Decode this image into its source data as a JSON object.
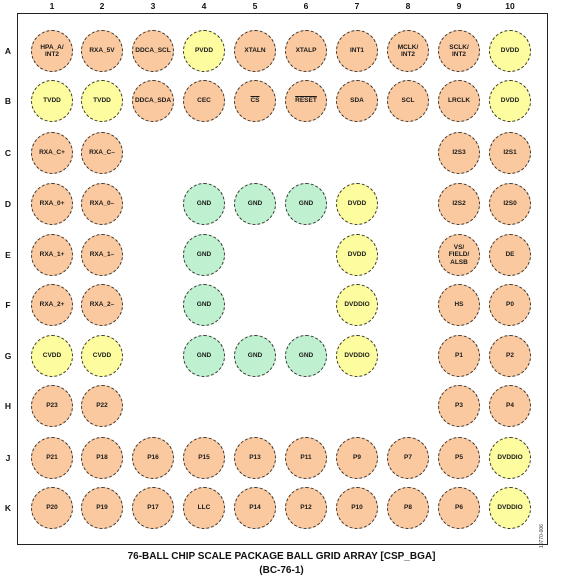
{
  "colors": {
    "orange": "#fbc99f",
    "yellow": "#fdfda0",
    "green": "#bff0cf"
  },
  "columns": [
    "1",
    "2",
    "3",
    "4",
    "5",
    "6",
    "7",
    "8",
    "9",
    "10"
  ],
  "rows": [
    "A",
    "B",
    "C",
    "D",
    "E",
    "F",
    "G",
    "H",
    "J",
    "K"
  ],
  "balls": [
    {
      "row": "A",
      "col": 1,
      "label": "HPA_A/\nINT2",
      "color": "orange"
    },
    {
      "row": "A",
      "col": 2,
      "label": "RXA_5V",
      "color": "orange"
    },
    {
      "row": "A",
      "col": 3,
      "label": "DDCA_SCL",
      "color": "orange"
    },
    {
      "row": "A",
      "col": 4,
      "label": "PVDD",
      "color": "yellow"
    },
    {
      "row": "A",
      "col": 5,
      "label": "XTALN",
      "color": "orange"
    },
    {
      "row": "A",
      "col": 6,
      "label": "XTALP",
      "color": "orange"
    },
    {
      "row": "A",
      "col": 7,
      "label": "INT1",
      "color": "orange"
    },
    {
      "row": "A",
      "col": 8,
      "label": "MCLK/\nINT2",
      "color": "orange"
    },
    {
      "row": "A",
      "col": 9,
      "label": "SCLK/\nINT2",
      "color": "orange"
    },
    {
      "row": "A",
      "col": 10,
      "label": "DVDD",
      "color": "yellow"
    },
    {
      "row": "B",
      "col": 1,
      "label": "TVDD",
      "color": "yellow"
    },
    {
      "row": "B",
      "col": 2,
      "label": "TVDD",
      "color": "yellow"
    },
    {
      "row": "B",
      "col": 3,
      "label": "DDCA_SDA",
      "color": "orange"
    },
    {
      "row": "B",
      "col": 4,
      "label": "CEC",
      "color": "orange"
    },
    {
      "row": "B",
      "col": 5,
      "label": "CS",
      "color": "orange"
    },
    {
      "row": "B",
      "col": 6,
      "label": "RESET",
      "color": "orange"
    },
    {
      "row": "B",
      "col": 7,
      "label": "SDA",
      "color": "orange"
    },
    {
      "row": "B",
      "col": 8,
      "label": "SCL",
      "color": "orange"
    },
    {
      "row": "B",
      "col": 9,
      "label": "LRCLK",
      "color": "orange"
    },
    {
      "row": "B",
      "col": 10,
      "label": "DVDD",
      "color": "yellow"
    },
    {
      "row": "C",
      "col": 1,
      "label": "RXA_C+",
      "color": "orange"
    },
    {
      "row": "C",
      "col": 2,
      "label": "RXA_C–",
      "color": "orange"
    },
    {
      "row": "C",
      "col": 9,
      "label": "I2S3",
      "color": "orange"
    },
    {
      "row": "C",
      "col": 10,
      "label": "I2S1",
      "color": "orange"
    },
    {
      "row": "D",
      "col": 1,
      "label": "RXA_0+",
      "color": "orange"
    },
    {
      "row": "D",
      "col": 2,
      "label": "RXA_0–",
      "color": "orange"
    },
    {
      "row": "D",
      "col": 4,
      "label": "GND",
      "color": "green"
    },
    {
      "row": "D",
      "col": 5,
      "label": "GND",
      "color": "green"
    },
    {
      "row": "D",
      "col": 6,
      "label": "GND",
      "color": "green"
    },
    {
      "row": "D",
      "col": 7,
      "label": "DVDD",
      "color": "yellow"
    },
    {
      "row": "D",
      "col": 9,
      "label": "I2S2",
      "color": "orange"
    },
    {
      "row": "D",
      "col": 10,
      "label": "I2S0",
      "color": "orange"
    },
    {
      "row": "E",
      "col": 1,
      "label": "RXA_1+",
      "color": "orange"
    },
    {
      "row": "E",
      "col": 2,
      "label": "RXA_1–",
      "color": "orange"
    },
    {
      "row": "E",
      "col": 4,
      "label": "GND",
      "color": "green"
    },
    {
      "row": "E",
      "col": 7,
      "label": "DVDD",
      "color": "yellow"
    },
    {
      "row": "E",
      "col": 9,
      "label": "VS/\nFIELD/\nALSB",
      "color": "orange"
    },
    {
      "row": "E",
      "col": 10,
      "label": "DE",
      "color": "orange"
    },
    {
      "row": "F",
      "col": 1,
      "label": "RXA_2+",
      "color": "orange"
    },
    {
      "row": "F",
      "col": 2,
      "label": "RXA_2–",
      "color": "orange"
    },
    {
      "row": "F",
      "col": 4,
      "label": "GND",
      "color": "green"
    },
    {
      "row": "F",
      "col": 7,
      "label": "DVDDIO",
      "color": "yellow"
    },
    {
      "row": "F",
      "col": 9,
      "label": "HS",
      "color": "orange"
    },
    {
      "row": "F",
      "col": 10,
      "label": "P0",
      "color": "orange"
    },
    {
      "row": "G",
      "col": 1,
      "label": "CVDD",
      "color": "yellow"
    },
    {
      "row": "G",
      "col": 2,
      "label": "CVDD",
      "color": "yellow"
    },
    {
      "row": "G",
      "col": 4,
      "label": "GND",
      "color": "green"
    },
    {
      "row": "G",
      "col": 5,
      "label": "GND",
      "color": "green"
    },
    {
      "row": "G",
      "col": 6,
      "label": "GND",
      "color": "green"
    },
    {
      "row": "G",
      "col": 7,
      "label": "DVDDIO",
      "color": "yellow"
    },
    {
      "row": "G",
      "col": 9,
      "label": "P1",
      "color": "orange"
    },
    {
      "row": "G",
      "col": 10,
      "label": "P2",
      "color": "orange"
    },
    {
      "row": "H",
      "col": 1,
      "label": "P23",
      "color": "orange"
    },
    {
      "row": "H",
      "col": 2,
      "label": "P22",
      "color": "orange"
    },
    {
      "row": "H",
      "col": 9,
      "label": "P3",
      "color": "orange"
    },
    {
      "row": "H",
      "col": 10,
      "label": "P4",
      "color": "orange"
    },
    {
      "row": "J",
      "col": 1,
      "label": "P21",
      "color": "orange"
    },
    {
      "row": "J",
      "col": 2,
      "label": "P18",
      "color": "orange"
    },
    {
      "row": "J",
      "col": 3,
      "label": "P16",
      "color": "orange"
    },
    {
      "row": "J",
      "col": 4,
      "label": "P15",
      "color": "orange"
    },
    {
      "row": "J",
      "col": 5,
      "label": "P13",
      "color": "orange"
    },
    {
      "row": "J",
      "col": 6,
      "label": "P11",
      "color": "orange"
    },
    {
      "row": "J",
      "col": 7,
      "label": "P9",
      "color": "orange"
    },
    {
      "row": "J",
      "col": 8,
      "label": "P7",
      "color": "orange"
    },
    {
      "row": "J",
      "col": 9,
      "label": "P5",
      "color": "orange"
    },
    {
      "row": "J",
      "col": 10,
      "label": "DVDDIO",
      "color": "yellow"
    },
    {
      "row": "K",
      "col": 1,
      "label": "P20",
      "color": "orange"
    },
    {
      "row": "K",
      "col": 2,
      "label": "P19",
      "color": "orange"
    },
    {
      "row": "K",
      "col": 3,
      "label": "P17",
      "color": "orange"
    },
    {
      "row": "K",
      "col": 4,
      "label": "LLC",
      "color": "orange"
    },
    {
      "row": "K",
      "col": 5,
      "label": "P14",
      "color": "orange"
    },
    {
      "row": "K",
      "col": 6,
      "label": "P12",
      "color": "orange"
    },
    {
      "row": "K",
      "col": 7,
      "label": "P10",
      "color": "orange"
    },
    {
      "row": "K",
      "col": 8,
      "label": "P8",
      "color": "orange"
    },
    {
      "row": "K",
      "col": 9,
      "label": "P6",
      "color": "orange"
    },
    {
      "row": "K",
      "col": 10,
      "label": "DVDDIO",
      "color": "yellow"
    }
  ],
  "caption": {
    "line1": "76-BALL CHIP SCALE PACKAGE BALL GRID ARRAY [CSP_BGA]",
    "line2": "(BC-76-1)"
  },
  "figure_id": "10770-006"
}
